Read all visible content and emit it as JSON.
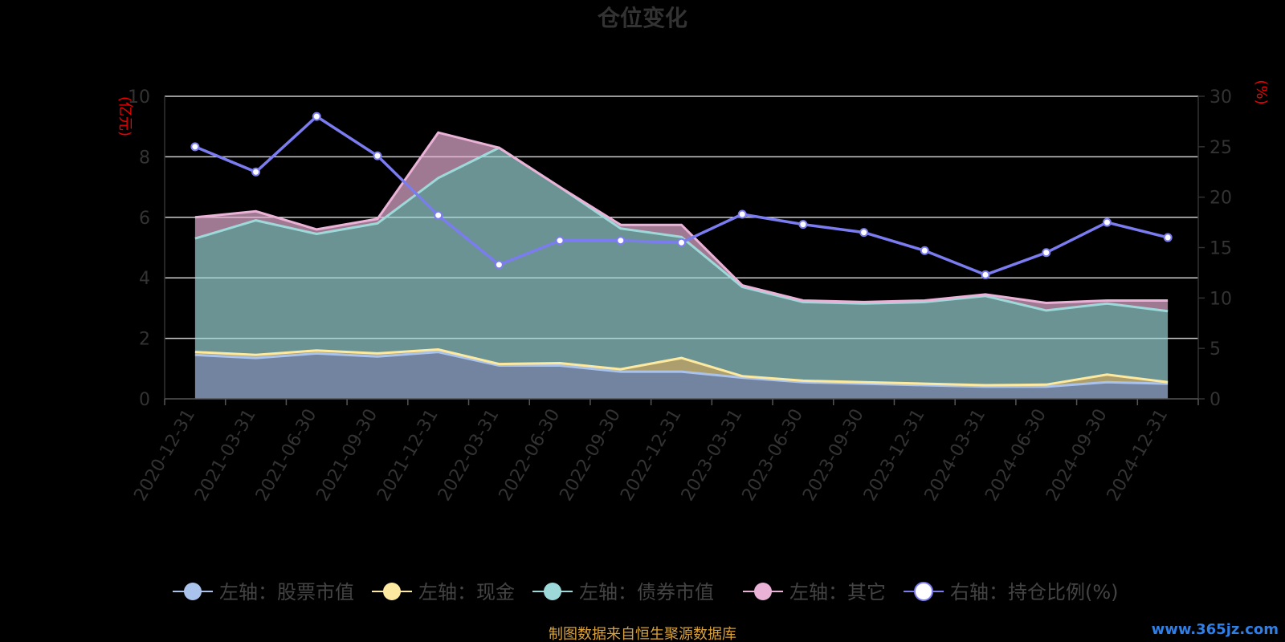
{
  "chart_data": {
    "type": "area",
    "title": "仓位变化",
    "left_unit": "(亿元)",
    "right_unit": "(%)",
    "ylim_left": [
      0,
      10
    ],
    "ylim_right": [
      0,
      30
    ],
    "left_ticks": [
      "0",
      "2",
      "4",
      "6",
      "8",
      "10"
    ],
    "right_ticks": [
      "0",
      "5",
      "10",
      "15",
      "20",
      "25",
      "30"
    ],
    "categories": [
      "2020-12-31",
      "2021-03-31",
      "2021-06-30",
      "2021-09-30",
      "2021-12-31",
      "2022-03-31",
      "2022-06-30",
      "2022-09-30",
      "2022-12-31",
      "2023-03-31",
      "2023-06-30",
      "2023-09-30",
      "2023-12-31",
      "2024-03-31",
      "2024-06-30",
      "2024-09-30",
      "2024-12-31"
    ],
    "stacked_series": [
      {
        "name": "左轴：股票市值",
        "color": "#a9c3ec",
        "values": [
          1.45,
          1.35,
          1.5,
          1.4,
          1.55,
          1.1,
          1.1,
          0.9,
          0.9,
          0.7,
          0.55,
          0.5,
          0.45,
          0.4,
          0.4,
          0.55,
          0.5
        ]
      },
      {
        "name": "左轴：现金",
        "color": "#fdeaa0",
        "values": [
          0.1,
          0.1,
          0.1,
          0.1,
          0.08,
          0.05,
          0.08,
          0.08,
          0.45,
          0.05,
          0.05,
          0.05,
          0.05,
          0.05,
          0.07,
          0.25,
          0.05
        ]
      },
      {
        "name": "左轴：债券市值",
        "color": "#9ed9da",
        "values": [
          3.75,
          4.45,
          3.85,
          4.3,
          5.67,
          7.15,
          5.82,
          4.65,
          4.0,
          2.95,
          2.6,
          2.6,
          2.7,
          2.95,
          2.45,
          2.35,
          2.35
        ]
      },
      {
        "name": "左轴：其它",
        "color": "#eab2d6",
        "values": [
          0.7,
          0.3,
          0.15,
          0.15,
          1.5,
          0.0,
          0.0,
          0.12,
          0.4,
          0.05,
          0.05,
          0.05,
          0.05,
          0.05,
          0.25,
          0.1,
          0.35
        ]
      }
    ],
    "line_series": {
      "name": "右轴：持仓比例(%)",
      "color": "#7b7cf0",
      "values": [
        25.0,
        22.5,
        28.0,
        24.1,
        18.2,
        13.3,
        15.7,
        15.7,
        15.5,
        18.3,
        17.3,
        16.5,
        14.7,
        12.3,
        14.5,
        17.5,
        16.0
      ]
    },
    "grid": true,
    "legend_position": "bottom"
  },
  "footer": {
    "source": "制图数据来自恒生聚源数据库",
    "watermark": "www.365jz.com"
  }
}
